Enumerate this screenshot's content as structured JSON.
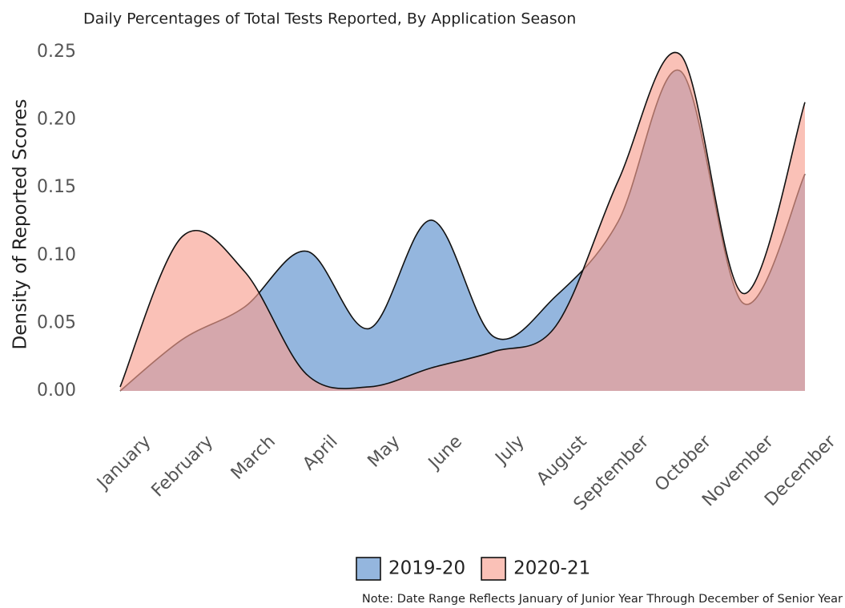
{
  "chart_data": {
    "type": "area",
    "title": "Daily Percentages of Total Tests Reported, By Application Season",
    "y_label": "Density of Reported Scores",
    "note": "Note: Date Range Reflects January of Junior Year Through December of Senior Year",
    "categories": [
      "January",
      "February",
      "March",
      "April",
      "May",
      "June",
      "July",
      "August",
      "September",
      "October",
      "November",
      "December"
    ],
    "series": [
      {
        "name": "2019-20",
        "color": "#5b8fcc",
        "values": [
          0.0,
          0.038,
          0.062,
          0.103,
          0.046,
          0.126,
          0.04,
          0.07,
          0.125,
          0.236,
          0.065,
          0.16
        ]
      },
      {
        "name": "2020-21",
        "color": "#f8a090",
        "values": [
          0.003,
          0.114,
          0.088,
          0.012,
          0.003,
          0.017,
          0.029,
          0.048,
          0.155,
          0.248,
          0.072,
          0.213
        ]
      }
    ],
    "ylim": [
      0,
      0.25
    ],
    "yticks": [
      {
        "value": 0,
        "label": "0.00"
      },
      {
        "value": 0.05,
        "label": "0.05"
      },
      {
        "value": 0.1,
        "label": "0.10"
      },
      {
        "value": 0.15,
        "label": "0.15"
      },
      {
        "value": 0.2,
        "label": "0.20"
      },
      {
        "value": 0.25,
        "label": "0.25"
      }
    ],
    "legend": "bottom"
  }
}
